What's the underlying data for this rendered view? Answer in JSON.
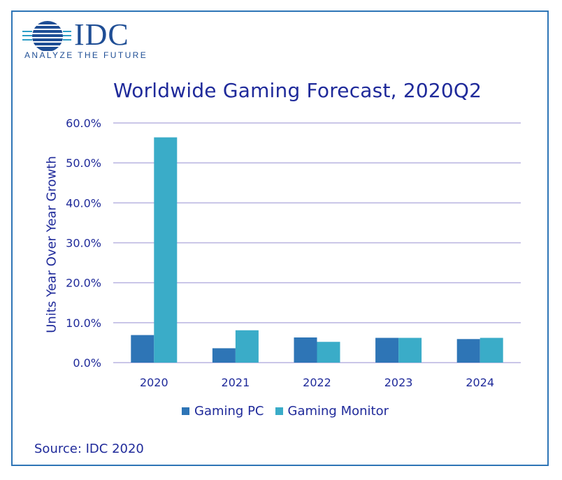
{
  "logo": {
    "wordmark": "IDC",
    "tagline": "ANALYZE THE FUTURE"
  },
  "source": "Source: IDC 2020",
  "colors": {
    "frame": "#2e75b6",
    "text": "#1f2a9a",
    "gridline": "#b8b3e0",
    "gaming_pc": "#2e75b6",
    "gaming_monitor": "#3aacc8"
  },
  "chart_data": {
    "type": "bar",
    "title": "Worldwide Gaming Forecast, 2020Q2",
    "xlabel": "",
    "ylabel": "Units Year Over Year Growth",
    "categories": [
      "2020",
      "2021",
      "2022",
      "2023",
      "2024"
    ],
    "series": [
      {
        "name": "Gaming PC",
        "color": "#2e75b6",
        "values": [
          6.9,
          3.6,
          6.3,
          6.2,
          5.9
        ]
      },
      {
        "name": "Gaming Monitor",
        "color": "#3aacc8",
        "values": [
          56.4,
          8.1,
          5.2,
          6.2,
          6.2
        ]
      }
    ],
    "ylim": [
      0,
      60
    ],
    "yticks": [
      "0.0%",
      "10.0%",
      "20.0%",
      "30.0%",
      "40.0%",
      "50.0%",
      "60.0%"
    ],
    "grid": true,
    "legend": "bottom"
  }
}
